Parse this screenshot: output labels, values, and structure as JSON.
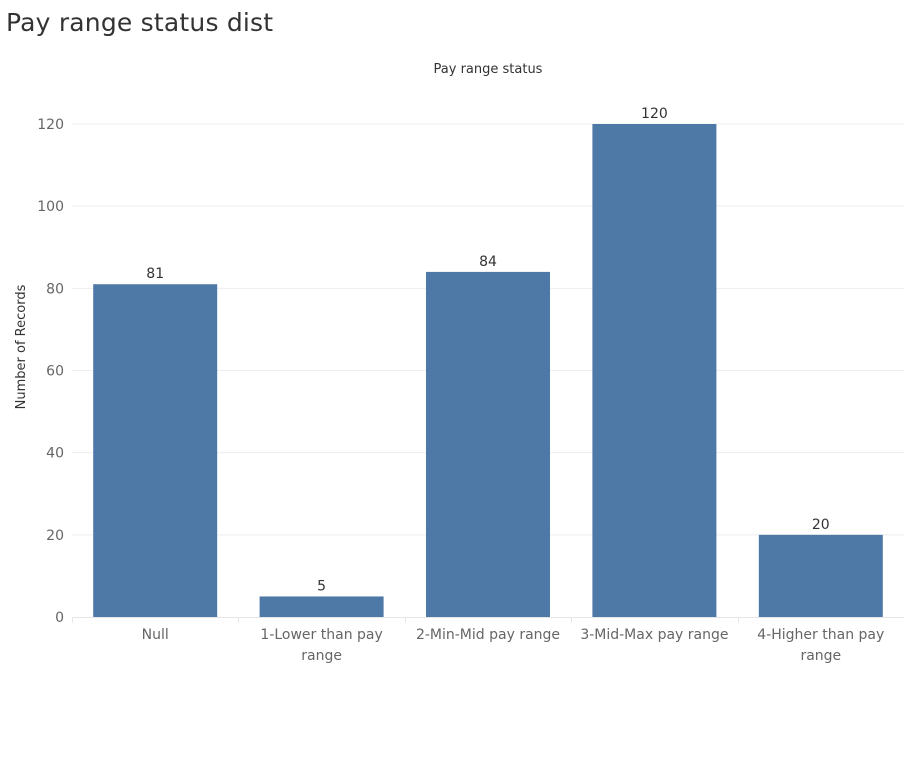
{
  "page": {
    "title": "Pay range status dist"
  },
  "chart_data": {
    "type": "bar",
    "title": "Pay range status dist",
    "xlabel": "Pay range status",
    "ylabel": "Number of Records",
    "categories": [
      "Null",
      "1-Lower than pay range",
      "2-Min-Mid pay range",
      "3-Mid-Max pay range",
      "4-Higher than pay range"
    ],
    "category_lines": [
      [
        "Null"
      ],
      [
        "1-Lower than pay",
        "range"
      ],
      [
        "2-Min-Mid pay range"
      ],
      [
        "3-Mid-Max pay range"
      ],
      [
        "4-Higher than pay",
        "range"
      ]
    ],
    "values": [
      81,
      5,
      84,
      120,
      20
    ],
    "data_labels": [
      "81",
      "5",
      "84",
      "120",
      "20"
    ],
    "yticks": [
      0,
      20,
      40,
      60,
      80,
      100,
      120
    ],
    "ytick_labels": [
      "0",
      "20",
      "40",
      "60",
      "80",
      "100",
      "120"
    ],
    "ylim": [
      0,
      120
    ],
    "grid": true,
    "legend": false,
    "colors": {
      "bar": "#4e79a7",
      "gridline": "#eeeeee",
      "axis": "#e6e6e6"
    }
  }
}
